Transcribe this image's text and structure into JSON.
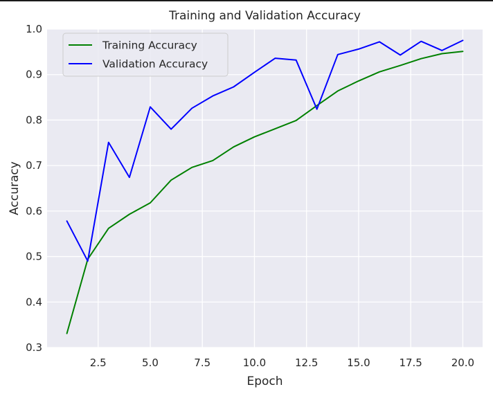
{
  "chart_data": {
    "type": "line",
    "title": "Training and Validation Accuracy",
    "xlabel": "Epoch",
    "ylabel": "Accuracy",
    "x": [
      1,
      2,
      3,
      4,
      5,
      6,
      7,
      8,
      9,
      10,
      11,
      12,
      13,
      14,
      15,
      16,
      17,
      18,
      19,
      20
    ],
    "series": [
      {
        "name": "Training Accuracy",
        "color": "#008000",
        "values": [
          0.331,
          0.494,
          0.562,
          0.593,
          0.618,
          0.668,
          0.696,
          0.711,
          0.741,
          0.763,
          0.781,
          0.799,
          0.832,
          0.864,
          0.886,
          0.906,
          0.92,
          0.935,
          0.946,
          0.951
        ]
      },
      {
        "name": "Validation Accuracy",
        "color": "#0000ff",
        "values": [
          0.578,
          0.49,
          0.751,
          0.674,
          0.829,
          0.78,
          0.826,
          0.853,
          0.873,
          0.905,
          0.936,
          0.932,
          0.824,
          0.944,
          0.956,
          0.972,
          0.943,
          0.973,
          0.953,
          0.975
        ]
      }
    ],
    "xlim": [
      0.05,
      20.95
    ],
    "ylim": [
      0.3,
      1.0
    ],
    "xticks": [
      2.5,
      5.0,
      7.5,
      10.0,
      12.5,
      15.0,
      17.5,
      20.0
    ],
    "xtick_labels": [
      "2.5",
      "5.0",
      "7.5",
      "10.0",
      "12.5",
      "15.0",
      "17.5",
      "20.0"
    ],
    "yticks": [
      0.3,
      0.4,
      0.5,
      0.6,
      0.7,
      0.8,
      0.9,
      1.0
    ],
    "ytick_labels": [
      "0.3",
      "0.4",
      "0.5",
      "0.6",
      "0.7",
      "0.8",
      "0.9",
      "1.0"
    ],
    "grid": true,
    "legend_position": "top-left",
    "colors": {
      "plot_background": "#eaeaf2",
      "grid": "#ffffff"
    }
  }
}
